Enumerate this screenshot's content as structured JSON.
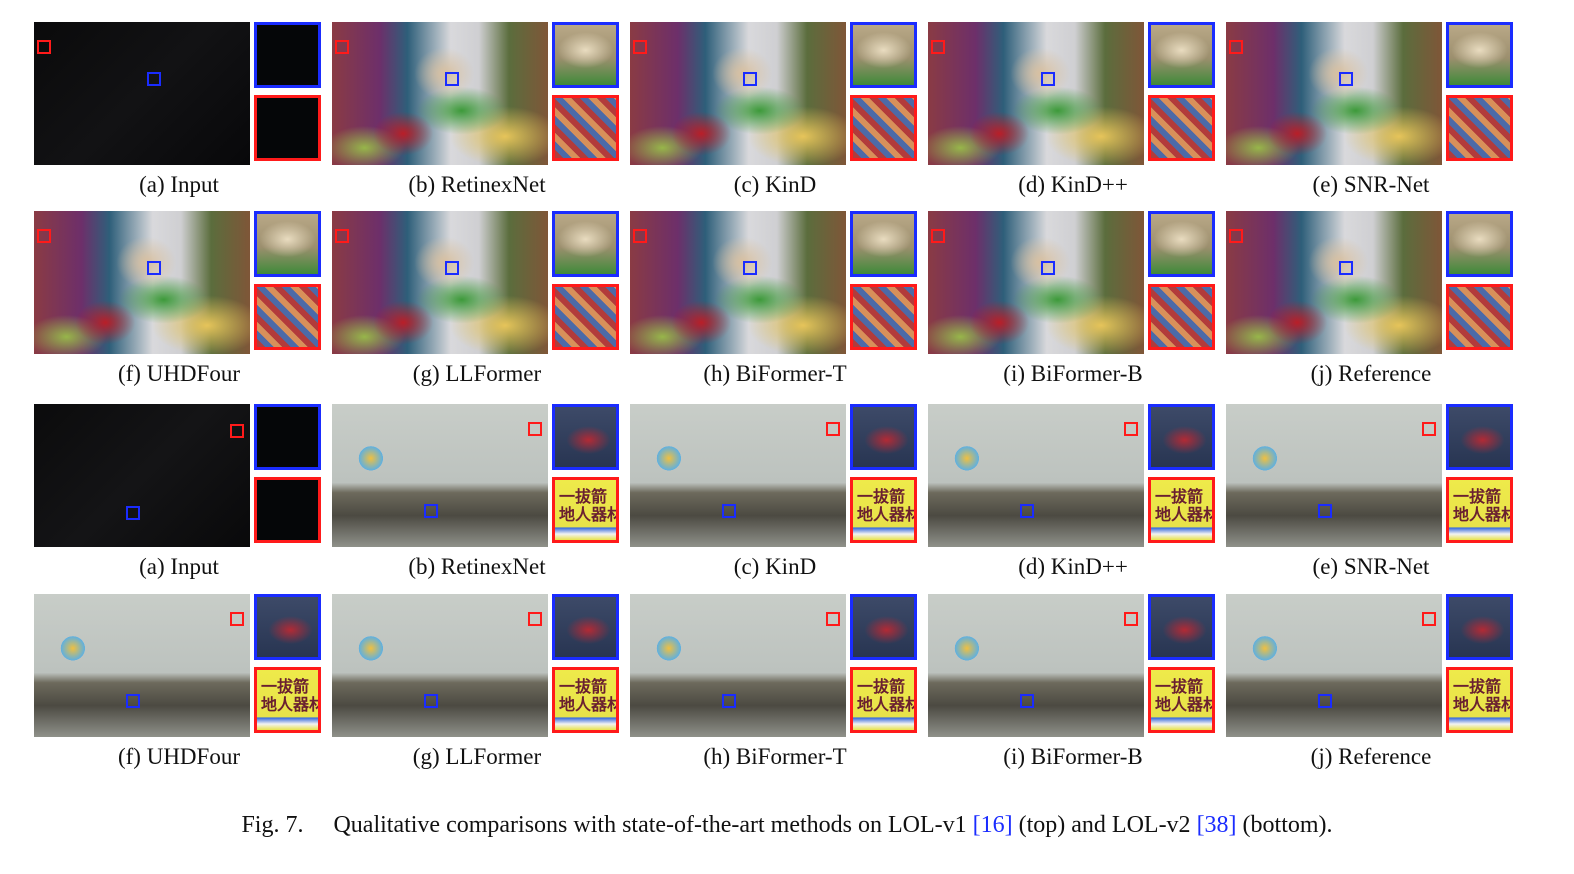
{
  "rows": [
    {
      "panels": [
        {
          "label": "(a) Input",
          "scene": "dark-toys",
          "zooms": [
            "dark",
            "dark"
          ]
        },
        {
          "label": "(b) RetinexNet",
          "scene": "toys",
          "zooms": [
            "fur",
            "fabric"
          ]
        },
        {
          "label": "(c) KinD",
          "scene": "toys",
          "zooms": [
            "fur",
            "fabric"
          ]
        },
        {
          "label": "(d) KinD++",
          "scene": "toys",
          "zooms": [
            "fur",
            "fabric"
          ]
        },
        {
          "label": "(e) SNR-Net",
          "scene": "toys",
          "zooms": [
            "fur",
            "fabric"
          ]
        }
      ]
    },
    {
      "panels": [
        {
          "label": "(f) UHDFour",
          "scene": "toys",
          "zooms": [
            "fur",
            "fabric"
          ]
        },
        {
          "label": "(g) LLFormer",
          "scene": "toys",
          "zooms": [
            "fur",
            "fabric"
          ]
        },
        {
          "label": "(h) BiFormer-T",
          "scene": "toys",
          "zooms": [
            "fur",
            "fabric"
          ]
        },
        {
          "label": "(i) BiFormer-B",
          "scene": "toys",
          "zooms": [
            "fur",
            "fabric"
          ]
        },
        {
          "label": "(j) Reference",
          "scene": "toys",
          "zooms": [
            "fur",
            "fabric"
          ]
        }
      ]
    },
    {
      "panels": [
        {
          "label": "(a) Input",
          "scene": "dark-room",
          "zooms": [
            "dark",
            "dark"
          ]
        },
        {
          "label": "(b) RetinexNet",
          "scene": "room",
          "zooms": [
            "sign-dark",
            "sign-yellow"
          ]
        },
        {
          "label": "(c) KinD",
          "scene": "room",
          "zooms": [
            "sign-dark",
            "sign-yellow"
          ]
        },
        {
          "label": "(d) KinD++",
          "scene": "room",
          "zooms": [
            "sign-dark",
            "sign-yellow"
          ]
        },
        {
          "label": "(e) SNR-Net",
          "scene": "room",
          "zooms": [
            "sign-dark",
            "sign-yellow"
          ]
        }
      ]
    },
    {
      "panels": [
        {
          "label": "(f) UHDFour",
          "scene": "room",
          "zooms": [
            "sign-dark",
            "sign-yellow"
          ]
        },
        {
          "label": "(g) LLFormer",
          "scene": "room",
          "zooms": [
            "sign-dark",
            "sign-yellow"
          ]
        },
        {
          "label": "(h) BiFormer-T",
          "scene": "room",
          "zooms": [
            "sign-dark",
            "sign-yellow"
          ]
        },
        {
          "label": "(i) BiFormer-B",
          "scene": "room",
          "zooms": [
            "sign-dark",
            "sign-yellow"
          ]
        },
        {
          "label": "(j) Reference",
          "scene": "room",
          "zooms": [
            "sign-dark",
            "sign-yellow"
          ]
        }
      ]
    }
  ],
  "zoom_text": "一拔箭\n地人器材",
  "colors": {
    "blue_box": "#1a2cff",
    "red_box": "#ff1a1a",
    "citation": "#1a2cff"
  },
  "caption": {
    "fig_number": "Fig. 7.",
    "text_1": "Qualitative comparisons with state-of-the-art methods on LOL-v1 ",
    "ref_1": "[16]",
    "text_2": " (top) and LOL-v2 ",
    "ref_2": "[38]",
    "text_3": " (bottom)."
  }
}
